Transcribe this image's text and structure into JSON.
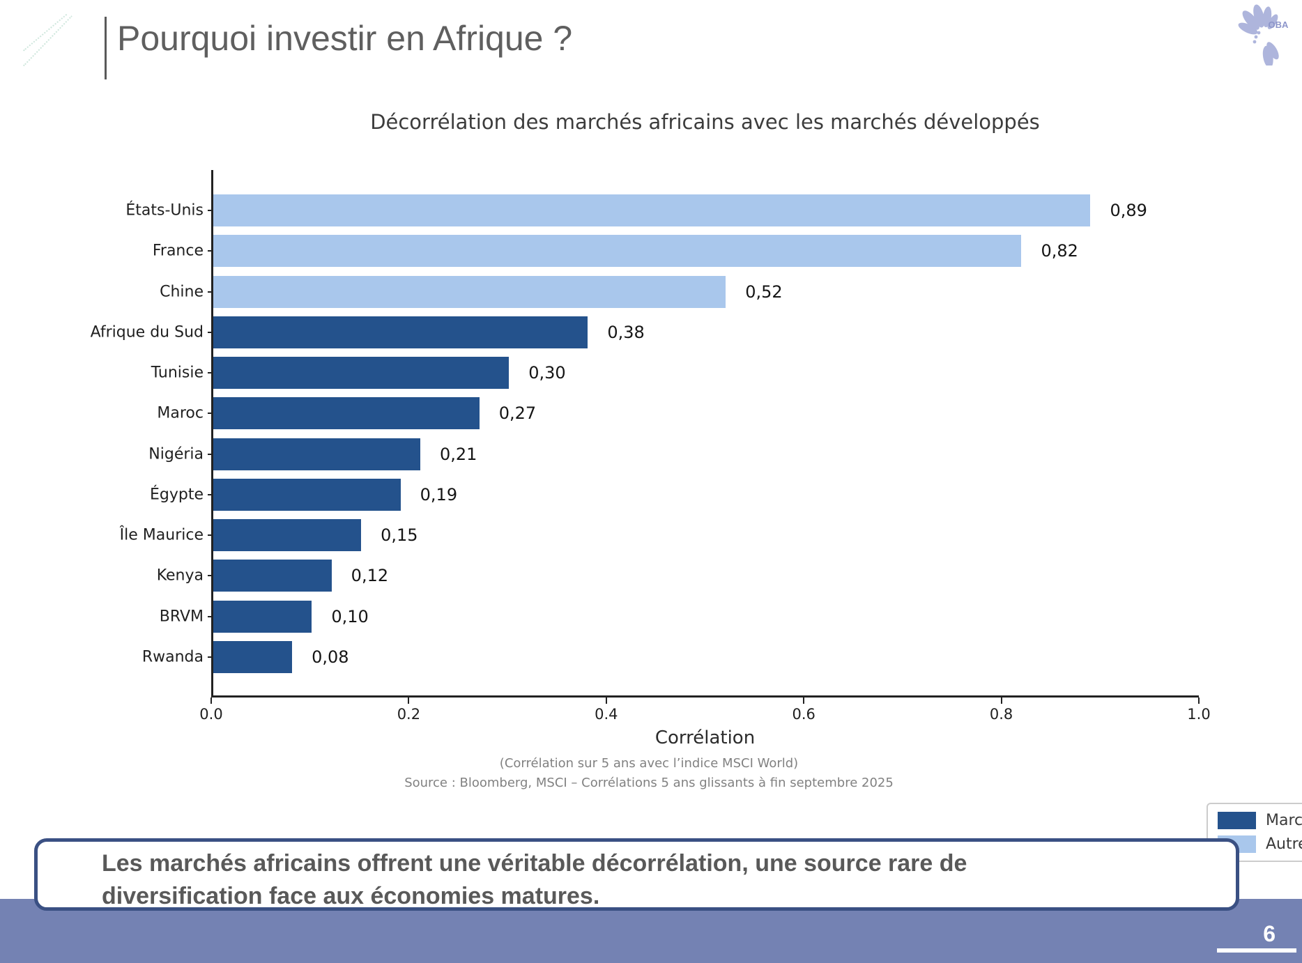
{
  "slide": {
    "title": "Pourquoi investir en Afrique ?",
    "page_number": "6",
    "logo_text": "OBA"
  },
  "chart_data": {
    "type": "bar",
    "orientation": "horizontal",
    "title": "Décorrélation des marchés africains avec les marchés développés",
    "categories": [
      "États-Unis",
      "France",
      "Chine",
      "Afrique du Sud",
      "Tunisie",
      "Maroc",
      "Nigéria",
      "Égypte",
      "Île Maurice",
      "Kenya",
      "BRVM",
      "Rwanda"
    ],
    "values": [
      0.89,
      0.82,
      0.52,
      0.38,
      0.3,
      0.27,
      0.21,
      0.19,
      0.15,
      0.12,
      0.1,
      0.08
    ],
    "value_labels": [
      "0,89",
      "0,82",
      "0,52",
      "0,38",
      "0,30",
      "0,27",
      "0,21",
      "0,19",
      "0,15",
      "0,12",
      "0,10",
      "0,08"
    ],
    "groups": [
      "autres",
      "autres",
      "autres",
      "africains",
      "africains",
      "africains",
      "africains",
      "africains",
      "africains",
      "africains",
      "africains",
      "africains"
    ],
    "colors": {
      "africains": "#24528C",
      "autres": "#A9C7EC"
    },
    "xlabel": "Corrélation",
    "xlim": [
      0.0,
      1.0
    ],
    "x_ticks": [
      "0.0",
      "0.2",
      "0.4",
      "0.6",
      "0.8",
      "1.0"
    ],
    "grid": false,
    "legend_position": "lower right",
    "legend": [
      {
        "label": "Marchés africains",
        "group": "africains"
      },
      {
        "label": "Autres marchés",
        "group": "autres"
      }
    ],
    "footnote1": "(Corrélation sur 5 ans avec l’indice MSCI World)",
    "footnote2": "Source : Bloomberg, MSCI – Corrélations 5 ans glissants à fin septembre 2025"
  },
  "callout": {
    "lines": [
      "Les marchés africains offrent une véritable décorrélation, une source rare de",
      "diversification face aux économies matures."
    ]
  }
}
